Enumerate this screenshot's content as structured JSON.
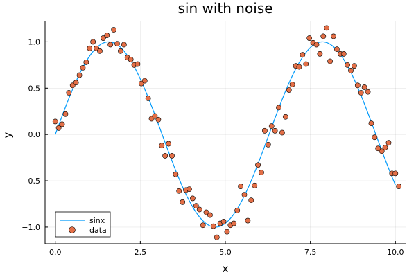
{
  "chart_data": {
    "type": "scatter",
    "title": "sin with noise",
    "xlabel": "x",
    "ylabel": "y",
    "xlim": [
      -0.3,
      10.3
    ],
    "ylim": [
      -1.18,
      1.22
    ],
    "xticks": [
      0.0,
      2.5,
      5.0,
      7.5,
      10.0
    ],
    "xtick_labels": [
      "0.0",
      "2.5",
      "5.0",
      "7.5",
      "10.0"
    ],
    "yticks": [
      -1.0,
      -0.5,
      0.0,
      0.5,
      1.0
    ],
    "ytick_labels": [
      "−1.0",
      "−0.5",
      "0.0",
      "0.5",
      "1.0"
    ],
    "grid": true,
    "legend_position": "bottom-left",
    "series": [
      {
        "name": "sinx",
        "type": "line",
        "color": "#009AFA",
        "function": "sin",
        "x_range": [
          0,
          10
        ]
      },
      {
        "name": "data",
        "type": "scatter",
        "color": "#E36F47",
        "edge_color": "#000000",
        "points": [
          [
            0.0,
            0.14
          ],
          [
            0.1,
            0.07
          ],
          [
            0.2,
            0.11
          ],
          [
            0.3,
            0.22
          ],
          [
            0.4,
            0.45
          ],
          [
            0.51,
            0.53
          ],
          [
            0.61,
            0.56
          ],
          [
            0.71,
            0.64
          ],
          [
            0.81,
            0.72
          ],
          [
            0.91,
            0.78
          ],
          [
            1.01,
            0.93
          ],
          [
            1.11,
            1.0
          ],
          [
            1.21,
            0.93
          ],
          [
            1.31,
            0.9
          ],
          [
            1.41,
            1.04
          ],
          [
            1.52,
            1.07
          ],
          [
            1.62,
            0.97
          ],
          [
            1.72,
            1.13
          ],
          [
            1.82,
            0.98
          ],
          [
            1.92,
            0.9
          ],
          [
            2.02,
            0.97
          ],
          [
            2.12,
            0.83
          ],
          [
            2.22,
            0.81
          ],
          [
            2.32,
            0.75
          ],
          [
            2.42,
            0.76
          ],
          [
            2.53,
            0.55
          ],
          [
            2.63,
            0.58
          ],
          [
            2.73,
            0.39
          ],
          [
            2.83,
            0.17
          ],
          [
            2.93,
            0.2
          ],
          [
            3.03,
            0.16
          ],
          [
            3.13,
            -0.12
          ],
          [
            3.23,
            -0.23
          ],
          [
            3.33,
            -0.1
          ],
          [
            3.43,
            -0.23
          ],
          [
            3.54,
            -0.43
          ],
          [
            3.64,
            -0.61
          ],
          [
            3.74,
            -0.73
          ],
          [
            3.84,
            -0.6
          ],
          [
            3.94,
            -0.59
          ],
          [
            4.04,
            -0.69
          ],
          [
            4.14,
            -0.77
          ],
          [
            4.24,
            -0.81
          ],
          [
            4.34,
            -0.98
          ],
          [
            4.44,
            -0.84
          ],
          [
            4.55,
            -0.87
          ],
          [
            4.65,
            -0.99
          ],
          [
            4.75,
            -1.11
          ],
          [
            4.85,
            -0.96
          ],
          [
            4.95,
            -0.94
          ],
          [
            5.05,
            -1.05
          ],
          [
            5.15,
            -0.98
          ],
          [
            5.25,
            -0.96
          ],
          [
            5.35,
            -0.82
          ],
          [
            5.45,
            -0.56
          ],
          [
            5.56,
            -0.65
          ],
          [
            5.66,
            -0.93
          ],
          [
            5.76,
            -0.71
          ],
          [
            5.86,
            -0.55
          ],
          [
            5.96,
            -0.33
          ],
          [
            6.06,
            -0.41
          ],
          [
            6.16,
            0.04
          ],
          [
            6.26,
            -0.11
          ],
          [
            6.36,
            0.09
          ],
          [
            6.46,
            0.04
          ],
          [
            6.57,
            0.29
          ],
          [
            6.67,
            0.02
          ],
          [
            6.77,
            0.19
          ],
          [
            6.87,
            0.48
          ],
          [
            6.97,
            0.54
          ],
          [
            7.07,
            0.74
          ],
          [
            7.17,
            0.73
          ],
          [
            7.27,
            0.86
          ],
          [
            7.37,
            0.76
          ],
          [
            7.47,
            1.04
          ],
          [
            7.58,
            0.99
          ],
          [
            7.68,
            0.97
          ],
          [
            7.78,
            0.87
          ],
          [
            7.88,
            1.06
          ],
          [
            7.98,
            1.15
          ],
          [
            8.08,
            0.79
          ],
          [
            8.18,
            1.06
          ],
          [
            8.28,
            0.92
          ],
          [
            8.38,
            0.87
          ],
          [
            8.48,
            0.87
          ],
          [
            8.59,
            0.75
          ],
          [
            8.69,
            0.69
          ],
          [
            8.79,
            0.74
          ],
          [
            8.89,
            0.53
          ],
          [
            8.99,
            0.45
          ],
          [
            9.09,
            0.51
          ],
          [
            9.19,
            0.46
          ],
          [
            9.29,
            0.12
          ],
          [
            9.39,
            -0.03
          ],
          [
            9.49,
            -0.15
          ],
          [
            9.6,
            -0.18
          ],
          [
            9.7,
            -0.14
          ],
          [
            9.8,
            -0.09
          ],
          [
            9.9,
            -0.42
          ],
          [
            10.0,
            -0.42
          ],
          [
            10.1,
            -0.56
          ]
        ]
      }
    ]
  }
}
